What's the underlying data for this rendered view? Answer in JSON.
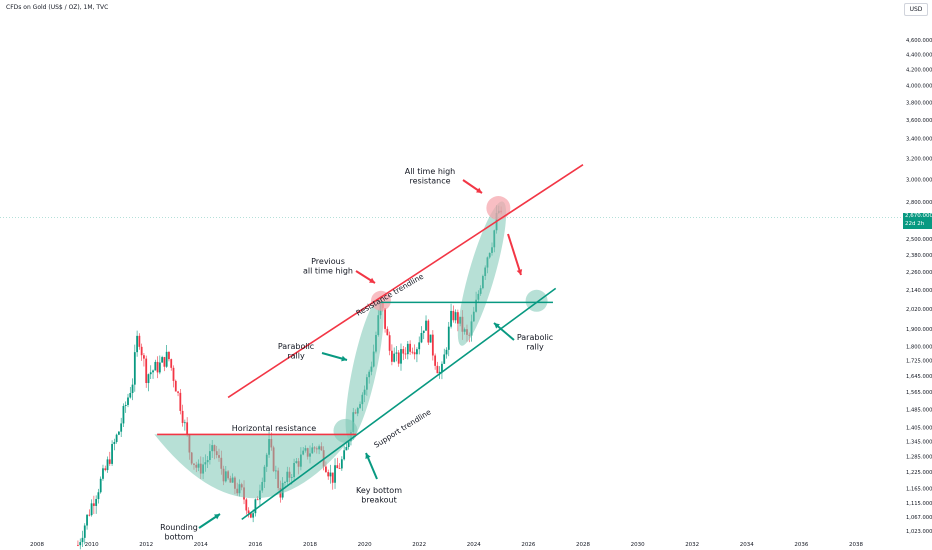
{
  "header": {
    "symbol": "CFDs on Gold (US$ / OZ), 1M, TVC",
    "currency": "USD"
  },
  "price_tag": {
    "price": "2,670.000",
    "countdown": "22d 2h"
  },
  "colors": {
    "up": "#089981",
    "down": "#f23645",
    "resistance": "#f23645",
    "support": "#089981",
    "highlight": "#7cc7b4",
    "highlight_red": "#f5a3aa"
  },
  "annotations": {
    "all_time_high": [
      "All time high",
      "resistance"
    ],
    "previous_ath": [
      "Previous",
      "all time high"
    ],
    "parabolic_left": [
      "Parabolic",
      "rally"
    ],
    "parabolic_right": [
      "Parabolic",
      "rally"
    ],
    "horizontal_resistance": "Horizontal resistance",
    "resistance_trendline": "Resistance trendline",
    "support_trendline": "Support trendline",
    "key_bottom": [
      "Key bottom",
      "breakout"
    ],
    "rounding_bottom": [
      "Rounding",
      "bottom"
    ]
  },
  "chart_data": {
    "type": "candlestick",
    "title": "CFDs on Gold (US$ / OZ), 1M, TVC",
    "x_ticks": [
      "2008",
      "2010",
      "2012",
      "2014",
      "2016",
      "2018",
      "2020",
      "2022",
      "2024",
      "2026",
      "2028",
      "2030",
      "2032",
      "2034",
      "2036",
      "2038"
    ],
    "y_scale": "log",
    "y_ticks": [
      "1,023.000",
      "1,067.000",
      "1,115.000",
      "1,165.000",
      "1,225.000",
      "1,285.000",
      "1,345.000",
      "1,405.000",
      "1,485.000",
      "1,565.000",
      "1,645.000",
      "1,725.000",
      "1,800.000",
      "1,900.000",
      "2,020.000",
      "2,140.000",
      "2,260.000",
      "2,380.000",
      "2,500.000",
      "2,800.000",
      "3,000.000",
      "3,200.000",
      "3,400.000",
      "3,600.000",
      "3,800.000",
      "4,000.000",
      "4,200.000",
      "4,400.000",
      "4,600.000"
    ],
    "last_price": 2670,
    "series_path": [
      [
        2009.5,
        980
      ],
      [
        2010.0,
        1110
      ],
      [
        2010.5,
        1230
      ],
      [
        2011.0,
        1390
      ],
      [
        2011.5,
        1620
      ],
      [
        2011.7,
        1880
      ],
      [
        2012.0,
        1650
      ],
      [
        2012.5,
        1700
      ],
      [
        2012.8,
        1750
      ],
      [
        2013.3,
        1480
      ],
      [
        2013.6,
        1300
      ],
      [
        2013.9,
        1230
      ],
      [
        2014.5,
        1310
      ],
      [
        2014.9,
        1200
      ],
      [
        2015.5,
        1150
      ],
      [
        2015.9,
        1060
      ],
      [
        2016.5,
        1330
      ],
      [
        2016.9,
        1150
      ],
      [
        2017.5,
        1260
      ],
      [
        2017.9,
        1300
      ],
      [
        2018.3,
        1330
      ],
      [
        2018.8,
        1200
      ],
      [
        2019.3,
        1290
      ],
      [
        2019.6,
        1480
      ],
      [
        2020.0,
        1580
      ],
      [
        2020.3,
        1740
      ],
      [
        2020.6,
        2060
      ],
      [
        2020.9,
        1780
      ],
      [
        2021.2,
        1720
      ],
      [
        2021.6,
        1810
      ],
      [
        2021.9,
        1800
      ],
      [
        2022.2,
        1940
      ],
      [
        2022.6,
        1720
      ],
      [
        2022.8,
        1640
      ],
      [
        2023.2,
        1990
      ],
      [
        2023.4,
        1960
      ],
      [
        2023.8,
        1830
      ],
      [
        2024.1,
        2060
      ],
      [
        2024.4,
        2320
      ],
      [
        2024.7,
        2510
      ],
      [
        2024.9,
        2740
      ],
      [
        2025.0,
        2660
      ]
    ],
    "lines": {
      "resistance_trendline": [
        [
          2015.0,
          1540
        ],
        [
          2028.0,
          3140
        ]
      ],
      "support_trendline": [
        [
          2015.5,
          1060
        ],
        [
          2027.0,
          2150
        ]
      ],
      "horizontal_resistance": [
        [
          2012.4,
          1375
        ],
        [
          2019.7,
          1375
        ]
      ],
      "horizontal_ath_level": [
        [
          2020.6,
          2060
        ],
        [
          2026.9,
          2060
        ]
      ]
    }
  }
}
